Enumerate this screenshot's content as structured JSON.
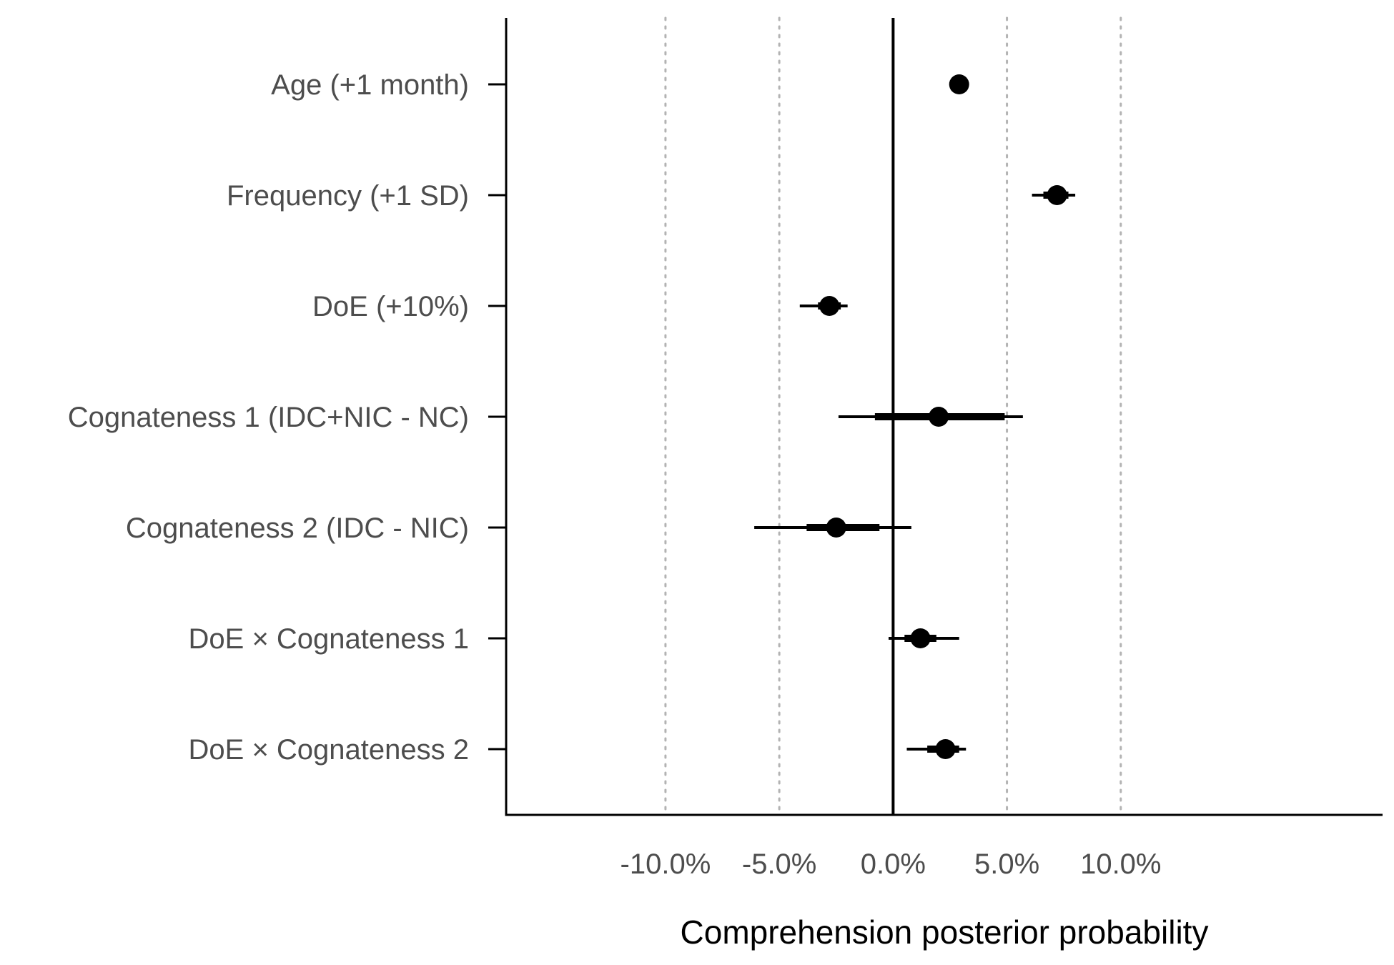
{
  "chart_data": {
    "type": "forest",
    "title": "",
    "xlabel": "Comprehension posterior probability",
    "ylabel": "",
    "xlim": [
      -17,
      21.5
    ],
    "x_ticks": [
      -10,
      -5,
      0,
      5,
      10
    ],
    "x_tick_labels": [
      "-10.0%",
      "-5.0%",
      "0.0%",
      "5.0%",
      "10.0%"
    ],
    "reference_line": 0,
    "gridlines": "vertical dotted at ticks",
    "categories": [
      "Age (+1 month)",
      "Frequency (+1 SD)",
      "DoE (+10%)",
      "Cognateness 1 (IDC+NIC - NC)",
      "Cognateness 2 (IDC - NIC)",
      "DoE × Cognateness 1",
      "DoE × Cognateness 2"
    ],
    "estimates": [
      {
        "label": "Age (+1 month)",
        "median": 2.9,
        "inner": [
          2.7,
          3.1
        ],
        "outer": [
          2.6,
          3.2
        ]
      },
      {
        "label": "Frequency (+1 SD)",
        "median": 7.2,
        "inner": [
          6.6,
          7.7
        ],
        "outer": [
          6.1,
          8.0
        ]
      },
      {
        "label": "DoE (+10%)",
        "median": -2.8,
        "inner": [
          -3.3,
          -2.3
        ],
        "outer": [
          -4.1,
          -2.0
        ]
      },
      {
        "label": "Cognateness 1 (IDC+NIC - NC)",
        "median": 2.0,
        "inner": [
          -0.8,
          4.9
        ],
        "outer": [
          -2.4,
          5.7
        ]
      },
      {
        "label": "Cognateness 2 (IDC - NIC)",
        "median": -2.5,
        "inner": [
          -3.8,
          -0.6
        ],
        "outer": [
          -6.1,
          0.8
        ]
      },
      {
        "label": "DoE × Cognateness 1",
        "median": 1.2,
        "inner": [
          0.5,
          1.9
        ],
        "outer": [
          -0.2,
          2.9
        ]
      },
      {
        "label": "DoE × Cognateness 2",
        "median": 2.3,
        "inner": [
          1.5,
          2.9
        ],
        "outer": [
          0.6,
          3.2
        ]
      }
    ],
    "colors": {
      "points": "#000000",
      "axis": "#000000",
      "grid": "#b3b3b3",
      "text": "#4d4d4d"
    }
  }
}
